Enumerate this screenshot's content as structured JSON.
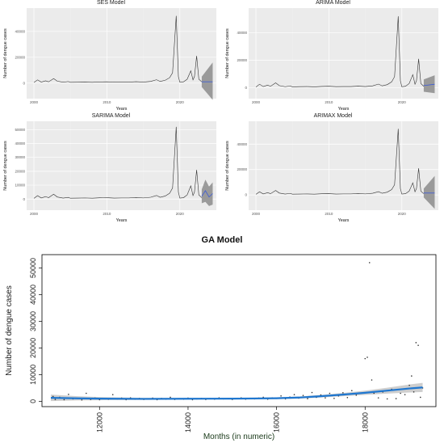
{
  "chart_data": [
    {
      "type": "line",
      "title": "SES Model",
      "xlabel": "Years",
      "ylabel": "Number of dengue cases",
      "xlim": [
        1999.0,
        2025.0
      ],
      "ylim": [
        -12000,
        58000
      ],
      "x_ticks": [
        2000,
        2010,
        2020
      ],
      "y_ticks": [
        0,
        20000,
        40000
      ],
      "series": [
        {
          "x": [
            2000,
            2000.5,
            2001,
            2001.6,
            2002,
            2002.7,
            2003.2,
            2004,
            2004.7,
            2005,
            2006,
            2007,
            2008,
            2009,
            2010,
            2011,
            2012,
            2013,
            2014,
            2015,
            2016,
            2016.8,
            2017.3,
            2018,
            2018.6,
            2019,
            2019.5,
            2019.8,
            2020,
            2020.5,
            2021,
            2021.5,
            2021.8,
            2022,
            2022.3,
            2022.6,
            2023
          ],
          "y": [
            500,
            2500,
            800,
            1800,
            1000,
            3500,
            1500,
            700,
            1200,
            600,
            700,
            800,
            600,
            900,
            1000,
            700,
            800,
            800,
            1100,
            800,
            1300,
            2600,
            1300,
            2200,
            4200,
            8000,
            52000,
            5000,
            700,
            1000,
            3000,
            9500,
            2500,
            5000,
            21000,
            3000,
            1000
          ]
        }
      ],
      "forecast": {
        "x": [
          2023,
          2024.5
        ],
        "y": [
          1000,
          1000
        ],
        "lower": [
          -3000,
          -13000
        ],
        "upper": [
          5000,
          16000
        ]
      }
    },
    {
      "type": "line",
      "title": "ARIMA Model",
      "xlabel": "Years",
      "ylabel": "Number of dengue cases",
      "xlim": [
        1999.0,
        2025.0
      ],
      "ylim": [
        -8000,
        58000
      ],
      "x_ticks": [
        2000,
        2010,
        2020
      ],
      "y_ticks": [
        0,
        20000,
        40000
      ],
      "series": [
        {
          "x": [
            2000,
            2000.5,
            2001,
            2001.6,
            2002,
            2002.7,
            2003.2,
            2004,
            2004.7,
            2005,
            2006,
            2007,
            2008,
            2009,
            2010,
            2011,
            2012,
            2013,
            2014,
            2015,
            2016,
            2016.8,
            2017.3,
            2018,
            2018.6,
            2019,
            2019.5,
            2019.8,
            2020,
            2020.5,
            2021,
            2021.5,
            2021.8,
            2022,
            2022.3,
            2022.6,
            2023
          ],
          "y": [
            500,
            2500,
            800,
            1800,
            1000,
            3500,
            1500,
            700,
            1200,
            600,
            700,
            800,
            600,
            900,
            1000,
            700,
            800,
            800,
            1100,
            800,
            1300,
            2600,
            1300,
            2200,
            4200,
            8000,
            52000,
            5000,
            700,
            1000,
            3000,
            9500,
            2500,
            5000,
            21000,
            3000,
            1000
          ]
        }
      ],
      "forecast": {
        "x": [
          2023,
          2024.5
        ],
        "y": [
          1500,
          2500
        ],
        "lower": [
          -3000,
          -4000
        ],
        "upper": [
          6000,
          9000
        ]
      }
    },
    {
      "type": "line",
      "title": "SARIMA Model",
      "xlabel": "Years",
      "ylabel": "Number of dengue cases",
      "xlim": [
        1999.0,
        2025.0
      ],
      "ylim": [
        -8000,
        56000
      ],
      "x_ticks": [
        2000,
        2010,
        2020
      ],
      "y_ticks": [
        0,
        10000,
        20000,
        30000,
        40000,
        50000
      ],
      "series": [
        {
          "x": [
            2000,
            2000.5,
            2001,
            2001.6,
            2002,
            2002.7,
            2003.2,
            2004,
            2004.7,
            2005,
            2006,
            2007,
            2008,
            2009,
            2010,
            2011,
            2012,
            2013,
            2014,
            2015,
            2016,
            2016.8,
            2017.3,
            2018,
            2018.6,
            2019,
            2019.5,
            2019.8,
            2020,
            2020.5,
            2021,
            2021.5,
            2021.8,
            2022,
            2022.3,
            2022.6,
            2023
          ],
          "y": [
            500,
            2500,
            800,
            1800,
            1000,
            3500,
            1500,
            700,
            1200,
            600,
            700,
            800,
            600,
            900,
            1000,
            700,
            800,
            800,
            1100,
            800,
            1300,
            2600,
            1300,
            2200,
            4200,
            8000,
            52000,
            5000,
            700,
            1000,
            3000,
            9500,
            2500,
            5000,
            21000,
            3000,
            1000
          ]
        }
      ],
      "forecast": {
        "x": [
          2023,
          2023.5,
          2024,
          2024.5
        ],
        "y": [
          2000,
          6000,
          1500,
          4000
        ],
        "lower": [
          -3000,
          -2000,
          -5000,
          -4000
        ],
        "upper": [
          7000,
          14000,
          9000,
          12000
        ]
      }
    },
    {
      "type": "line",
      "title": "ARIMAX Model",
      "xlabel": "Years",
      "ylabel": "Number of dengue cases",
      "xlim": [
        1999.0,
        2025.0
      ],
      "ylim": [
        -12000,
        58000
      ],
      "x_ticks": [
        2000,
        2010,
        2020
      ],
      "y_ticks": [
        0,
        20000,
        40000
      ],
      "series": [
        {
          "x": [
            2000,
            2000.5,
            2001,
            2001.6,
            2002,
            2002.7,
            2003.2,
            2004,
            2004.7,
            2005,
            2006,
            2007,
            2008,
            2009,
            2010,
            2011,
            2012,
            2013,
            2014,
            2015,
            2016,
            2016.8,
            2017.3,
            2018,
            2018.6,
            2019,
            2019.5,
            2019.8,
            2020,
            2020.5,
            2021,
            2021.5,
            2021.8,
            2022,
            2022.3,
            2022.6,
            2023
          ],
          "y": [
            500,
            2500,
            800,
            1800,
            1000,
            3500,
            1500,
            700,
            1200,
            600,
            700,
            800,
            600,
            900,
            1000,
            700,
            800,
            800,
            1100,
            800,
            1300,
            2600,
            1300,
            2200,
            4200,
            8000,
            52000,
            5000,
            700,
            1000,
            3000,
            9500,
            2500,
            5000,
            21000,
            3000,
            1000
          ]
        }
      ],
      "forecast": {
        "x": [
          2023,
          2024.5
        ],
        "y": [
          1500,
          1500
        ],
        "lower": [
          -2000,
          -11000
        ],
        "upper": [
          5000,
          15000
        ]
      }
    },
    {
      "type": "scatter",
      "title": "GA Model",
      "xlabel": "Months (in numeric)",
      "ylabel": "Number of dengue cases",
      "xlim": [
        10700,
        19600
      ],
      "ylim": [
        -2000,
        55000
      ],
      "x_ticks": [
        12000,
        14000,
        16000,
        18000
      ],
      "y_ticks": [
        0,
        10000,
        20000,
        30000,
        40000,
        50000
      ],
      "points": [
        [
          10950,
          1800
        ],
        [
          11000,
          700
        ],
        [
          11100,
          1500
        ],
        [
          11200,
          600
        ],
        [
          11300,
          2600
        ],
        [
          11400,
          900
        ],
        [
          11500,
          1100
        ],
        [
          11600,
          500
        ],
        [
          11700,
          3000
        ],
        [
          11800,
          700
        ],
        [
          11900,
          1200
        ],
        [
          12000,
          600
        ],
        [
          12100,
          1000
        ],
        [
          12200,
          800
        ],
        [
          12300,
          2500
        ],
        [
          12400,
          900
        ],
        [
          12500,
          1200
        ],
        [
          12600,
          600
        ],
        [
          12700,
          1300
        ],
        [
          12800,
          800
        ],
        [
          12900,
          1100
        ],
        [
          13000,
          700
        ],
        [
          13100,
          900
        ],
        [
          13200,
          1200
        ],
        [
          13300,
          600
        ],
        [
          13400,
          1100
        ],
        [
          13500,
          800
        ],
        [
          13600,
          1500
        ],
        [
          13700,
          700
        ],
        [
          13800,
          1000
        ],
        [
          13900,
          800
        ],
        [
          14000,
          1200
        ],
        [
          14100,
          600
        ],
        [
          14200,
          900
        ],
        [
          14300,
          1100
        ],
        [
          14400,
          700
        ],
        [
          14500,
          1000
        ],
        [
          14600,
          800
        ],
        [
          14700,
          1300
        ],
        [
          14800,
          900
        ],
        [
          14900,
          1100
        ],
        [
          15000,
          700
        ],
        [
          15100,
          1000
        ],
        [
          15200,
          1300
        ],
        [
          15300,
          800
        ],
        [
          15400,
          1100
        ],
        [
          15500,
          900
        ],
        [
          15600,
          1200
        ],
        [
          15700,
          1500
        ],
        [
          15800,
          800
        ],
        [
          15900,
          1300
        ],
        [
          16000,
          1100
        ],
        [
          16100,
          2000
        ],
        [
          16200,
          900
        ],
        [
          16300,
          1600
        ],
        [
          16400,
          2500
        ],
        [
          16500,
          1200
        ],
        [
          16600,
          2200
        ],
        [
          16700,
          1000
        ],
        [
          16800,
          3300
        ],
        [
          16900,
          1500
        ],
        [
          17000,
          2400
        ],
        [
          17100,
          1300
        ],
        [
          17200,
          3000
        ],
        [
          17300,
          1100
        ],
        [
          17400,
          2000
        ],
        [
          17500,
          3200
        ],
        [
          17600,
          1400
        ],
        [
          17700,
          4000
        ],
        [
          17800,
          2300
        ],
        [
          17900,
          3000
        ],
        [
          18000,
          16000
        ],
        [
          18050,
          16500
        ],
        [
          18100,
          52000
        ],
        [
          18150,
          8000
        ],
        [
          18200,
          3000
        ],
        [
          18300,
          1300
        ],
        [
          18400,
          3500
        ],
        [
          18500,
          900
        ],
        [
          18600,
          4500
        ],
        [
          18700,
          1000
        ],
        [
          18800,
          3000
        ],
        [
          18900,
          2500
        ],
        [
          19000,
          6000
        ],
        [
          19050,
          9500
        ],
        [
          19100,
          3500
        ],
        [
          19150,
          22000
        ],
        [
          19200,
          21000
        ],
        [
          19250,
          1500
        ],
        [
          19300,
          5000
        ]
      ],
      "fit": {
        "x": [
          10900,
          11500,
          12000,
          13000,
          14000,
          15000,
          15500,
          16000,
          16500,
          17000,
          17500,
          18000,
          18500,
          19000,
          19300
        ],
        "y": [
          1300,
          1100,
          1000,
          900,
          950,
          1000,
          1050,
          1150,
          1400,
          1900,
          2500,
          3200,
          4000,
          4800,
          5200
        ],
        "lower": [
          100,
          300,
          400,
          500,
          600,
          700,
          700,
          800,
          1000,
          1400,
          1900,
          2400,
          2900,
          3300,
          3500
        ],
        "upper": [
          2500,
          1900,
          1600,
          1300,
          1300,
          1300,
          1400,
          1500,
          1800,
          2400,
          3100,
          4000,
          5100,
          6300,
          6900
        ]
      }
    }
  ]
}
